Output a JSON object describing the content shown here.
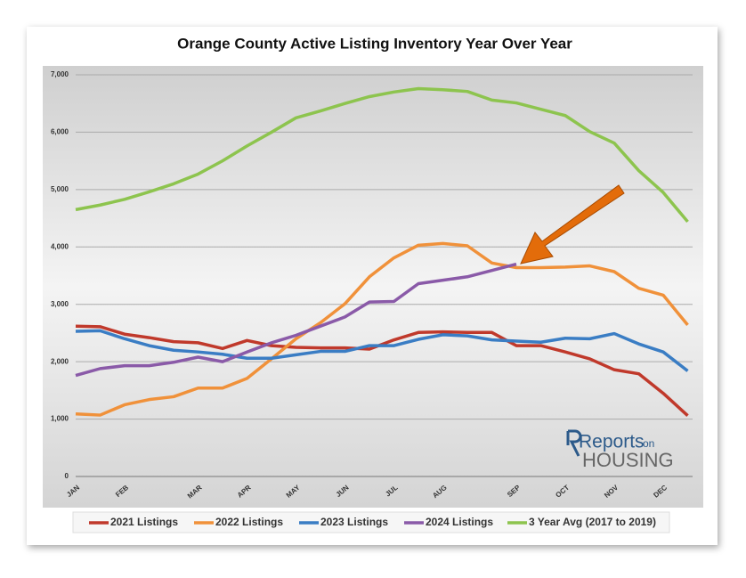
{
  "chart_data": {
    "type": "line",
    "title": "Orange County Active Listing Inventory Year Over Year",
    "categories": [
      "JAN",
      null,
      "FEB",
      null,
      null,
      "MAR",
      null,
      "APR",
      null,
      "MAY",
      null,
      "JUN",
      null,
      "JUL",
      null,
      "AUG",
      null,
      null,
      "SEP",
      null,
      "OCT",
      null,
      "NOV",
      null,
      "DEC",
      null
    ],
    "series": [
      {
        "name": "2021 Listings",
        "color": "#c0392b",
        "values": [
          2620,
          2610,
          2480,
          2420,
          2350,
          2330,
          2230,
          2370,
          2280,
          2250,
          2240,
          2240,
          2220,
          2380,
          2510,
          2520,
          2510,
          2510,
          2280,
          2280,
          2170,
          2050,
          1860,
          1790,
          1450,
          1060
        ]
      },
      {
        "name": "2022 Listings",
        "color": "#f0913a",
        "values": [
          1090,
          1070,
          1250,
          1340,
          1390,
          1540,
          1540,
          1710,
          2050,
          2400,
          2680,
          3010,
          3480,
          3810,
          4030,
          4060,
          4020,
          3720,
          3640,
          3640,
          3650,
          3670,
          3570,
          3280,
          3160,
          2640
        ]
      },
      {
        "name": "2023 Listings",
        "color": "#3a7dc4",
        "values": [
          2530,
          2540,
          2400,
          2280,
          2200,
          2170,
          2130,
          2060,
          2060,
          2120,
          2180,
          2180,
          2280,
          2280,
          2390,
          2470,
          2450,
          2380,
          2360,
          2340,
          2410,
          2400,
          2490,
          2310,
          2170,
          1840
        ]
      },
      {
        "name": "2024 Listings",
        "color": "#8a5aa8",
        "values": [
          1760,
          1880,
          1930,
          1930,
          1990,
          2080,
          2000,
          2170,
          2330,
          2460,
          2620,
          2780,
          3040,
          3050,
          3360,
          3420,
          3480,
          3590,
          3700,
          null,
          null,
          null,
          null,
          null,
          null,
          null
        ]
      },
      {
        "name": "3 Year Avg (2017 to 2019)",
        "color": "#8dc44e",
        "values": [
          4650,
          4730,
          4830,
          4960,
          5100,
          5270,
          5500,
          5760,
          6000,
          6250,
          6370,
          6500,
          6620,
          6700,
          6760,
          6740,
          6710,
          6560,
          6510,
          6400,
          6290,
          6010,
          5810,
          5330,
          4950,
          4440
        ]
      }
    ],
    "ylim": [
      0,
      7000
    ],
    "yticks": [
      0,
      {
        "value": 1000,
        "label": "1,000"
      },
      {
        "value": 2000,
        "label": "2,000"
      },
      {
        "value": 3000,
        "label": "3,000"
      },
      {
        "value": 4000,
        "label": "4,000"
      },
      {
        "value": 5000,
        "label": "5,000"
      },
      {
        "value": 6000,
        "label": "6,000"
      },
      {
        "value": 7000,
        "label": "7,000"
      }
    ],
    "grid": true,
    "legend": "bottom"
  },
  "logo": {
    "main": "Reports",
    "small": "on",
    "sub": "HOUSING"
  }
}
